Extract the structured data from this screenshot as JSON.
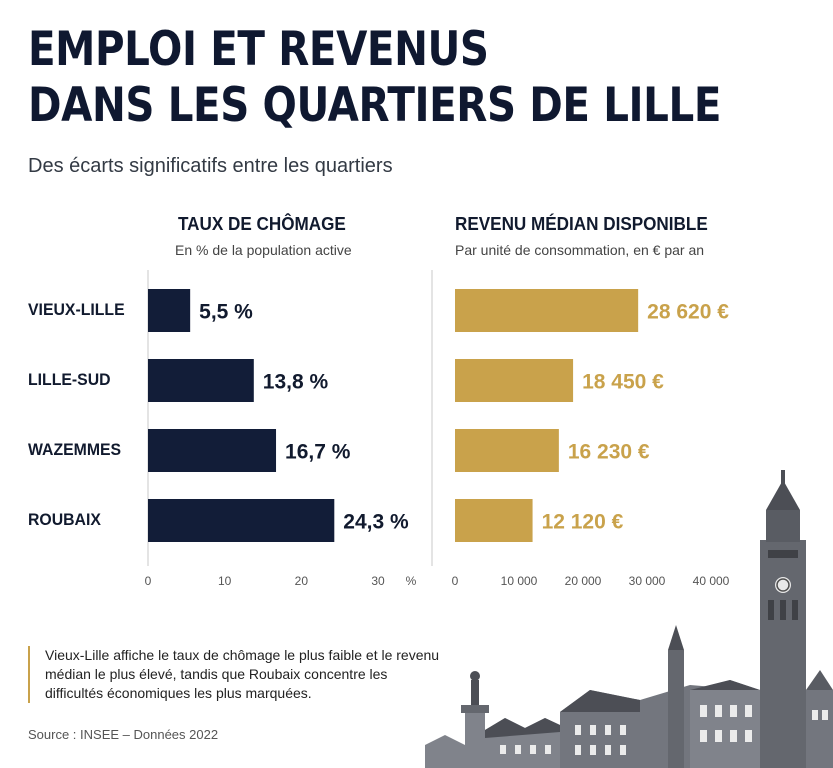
{
  "title_line1": "EMPLOI ET REVENUS",
  "title_line2": "DANS LES QUARTIERS DE LILLE",
  "subtitle": "Des écarts significatifs entre les quartiers",
  "note": "Vieux-Lille affiche le taux de chômage le plus faible et le revenu médian le plus élevé, tandis que Roubaix concentre les difficultés économiques les plus marquées.",
  "source": "Source : INSEE – Données 2022",
  "colors": {
    "navy": "#121d38",
    "gold": "#c9a24b"
  },
  "chart_data": [
    {
      "type": "bar",
      "orientation": "horizontal",
      "title": "TAUX DE CHÔMAGE",
      "subtitle": "En % de la population active",
      "categories": [
        "VIEUX-LILLE",
        "LILLE-SUD",
        "WAZEMMES",
        "ROUBAIX"
      ],
      "values": [
        5.5,
        13.8,
        16.7,
        24.3
      ],
      "value_labels": [
        "5,5 %",
        "13,8 %",
        "16,7 %",
        "24,3 %"
      ],
      "xlim": [
        0,
        30
      ],
      "ticks": [
        0,
        10,
        20,
        30
      ],
      "tick_labels": [
        "0",
        "10",
        "20",
        "30"
      ],
      "unit_label": "%",
      "color": "#121d38"
    },
    {
      "type": "bar",
      "orientation": "horizontal",
      "title": "REVENU MÉDIAN DISPONIBLE",
      "subtitle": "Par unité de consommation, en € par an",
      "categories": [
        "VIEUX-LILLE",
        "LILLE-SUD",
        "WAZEMMES",
        "ROUBAIX"
      ],
      "values": [
        28620,
        18450,
        16230,
        12120
      ],
      "value_labels": [
        "28 620 €",
        "18 450 €",
        "16 230 €",
        "12 120 €"
      ],
      "xlim": [
        0,
        40000
      ],
      "ticks": [
        0,
        10000,
        20000,
        30000,
        40000
      ],
      "tick_labels": [
        "0",
        "10 000",
        "20 000",
        "30 000",
        "40 000"
      ],
      "color": "#c9a24b"
    }
  ]
}
